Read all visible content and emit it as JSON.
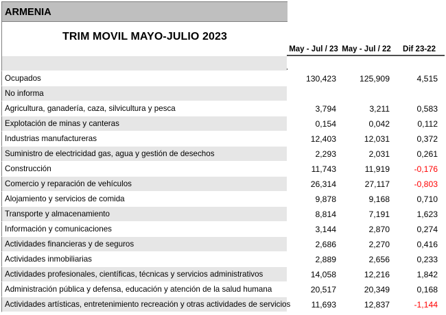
{
  "header": {
    "region": "ARMENIA",
    "title": "TRIM MOVIL MAYO-JULIO 2023",
    "columns": [
      "May - Jul / 23",
      "May - Jul / 22",
      "Dif 23-22"
    ]
  },
  "rows": [
    {
      "label": "",
      "v1": "",
      "v2": "",
      "v3": "",
      "neg": false
    },
    {
      "label": "Ocupados",
      "v1": "130,423",
      "v2": "125,909",
      "v3": "4,515",
      "neg": false
    },
    {
      "label": "No informa",
      "v1": "",
      "v2": "",
      "v3": "",
      "neg": false
    },
    {
      "label": "Agricultura, ganadería, caza, silvicultura y pesca",
      "v1": "3,794",
      "v2": "3,211",
      "v3": "0,583",
      "neg": false
    },
    {
      "label": "Explotación de minas y canteras",
      "v1": "0,154",
      "v2": "0,042",
      "v3": "0,112",
      "neg": false
    },
    {
      "label": "Industrias manufactureras",
      "v1": "12,403",
      "v2": "12,031",
      "v3": "0,372",
      "neg": false
    },
    {
      "label": "Suministro de electricidad gas, agua y gestión de desechos",
      "v1": "2,293",
      "v2": "2,031",
      "v3": "0,261",
      "neg": false
    },
    {
      "label": "Construcción",
      "v1": "11,743",
      "v2": "11,919",
      "v3": "-0,176",
      "neg": true
    },
    {
      "label": "Comercio y reparación de vehículos",
      "v1": "26,314",
      "v2": "27,117",
      "v3": "-0,803",
      "neg": true
    },
    {
      "label": "Alojamiento y servicios de comida",
      "v1": "9,878",
      "v2": "9,168",
      "v3": "0,710",
      "neg": false
    },
    {
      "label": "Transporte y almacenamiento",
      "v1": "8,814",
      "v2": "7,191",
      "v3": "1,623",
      "neg": false
    },
    {
      "label": "Información y comunicaciones",
      "v1": "3,144",
      "v2": "2,870",
      "v3": "0,274",
      "neg": false
    },
    {
      "label": "Actividades financieras y de seguros",
      "v1": "2,686",
      "v2": "2,270",
      "v3": "0,416",
      "neg": false
    },
    {
      "label": "Actividades inmobiliarias",
      "v1": "2,889",
      "v2": "2,656",
      "v3": "0,233",
      "neg": false
    },
    {
      "label": "Actividades profesionales, científicas, técnicas y servicios administrativos",
      "v1": "14,058",
      "v2": "12,216",
      "v3": "1,842",
      "neg": false
    },
    {
      "label": "Administración pública y defensa, educación y atención de la salud humana",
      "v1": "20,517",
      "v2": "20,349",
      "v3": "0,168",
      "neg": false
    },
    {
      "label": "Actividades artísticas, entretenimiento recreación y otras actividades de servicios",
      "v1": "11,693",
      "v2": "12,837",
      "v3": "-1,144",
      "neg": true
    }
  ],
  "colors": {
    "region_bg": "#bfbfbf",
    "row_grey": "#e6e6e6",
    "negative": "#ff0000"
  }
}
